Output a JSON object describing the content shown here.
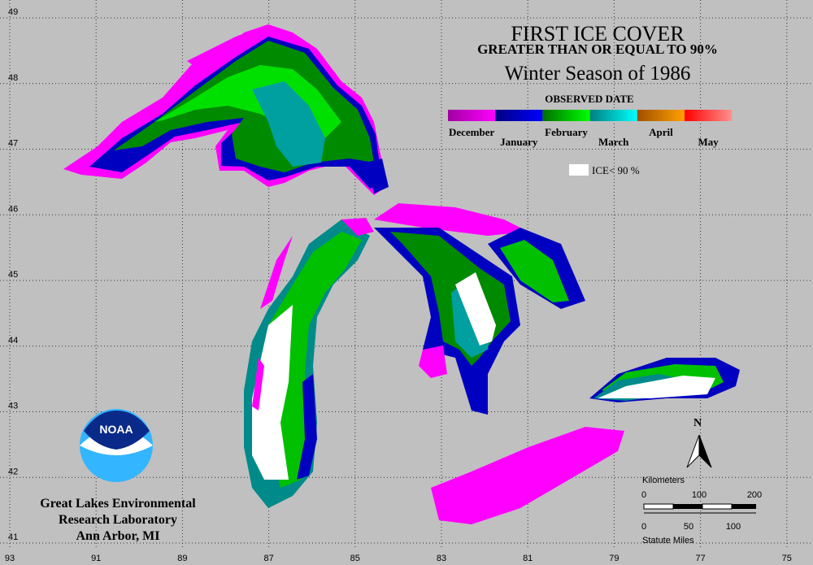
{
  "title": "FIRST ICE COVER",
  "subtitle": "GREATER THAN OR EQUAL TO 90%",
  "season": "Winter Season of 1986",
  "legend": {
    "title": "OBSERVED DATE",
    "items": [
      {
        "label": "December",
        "colors": [
          "#a000a0",
          "#ff00ff"
        ]
      },
      {
        "label": "January",
        "colors": [
          "#000080",
          "#0000ff"
        ]
      },
      {
        "label": "February",
        "colors": [
          "#007000",
          "#00ff00"
        ]
      },
      {
        "label": "March",
        "colors": [
          "#008080",
          "#00ffff"
        ]
      },
      {
        "label": "April",
        "colors": [
          "#a05000",
          "#ffa000"
        ]
      },
      {
        "label": "May",
        "colors": [
          "#ff0000",
          "#ff9090"
        ]
      }
    ],
    "low_ice": "ICE< 90 %"
  },
  "latitudes": [
    49,
    48,
    47,
    46,
    45,
    44,
    43,
    42,
    41
  ],
  "longitudes": [
    93,
    91,
    89,
    87,
    85,
    83,
    81,
    79,
    77,
    75
  ],
  "logo": "NOAA",
  "lab": [
    "Great Lakes Environmental",
    "Research Laboratory",
    "Ann Arbor, MI"
  ],
  "north": "N",
  "scale": {
    "km_title": "Kilometers",
    "km": [
      0,
      100,
      200
    ],
    "mi": [
      0,
      50,
      100
    ],
    "mi_title": "Statute Miles"
  }
}
